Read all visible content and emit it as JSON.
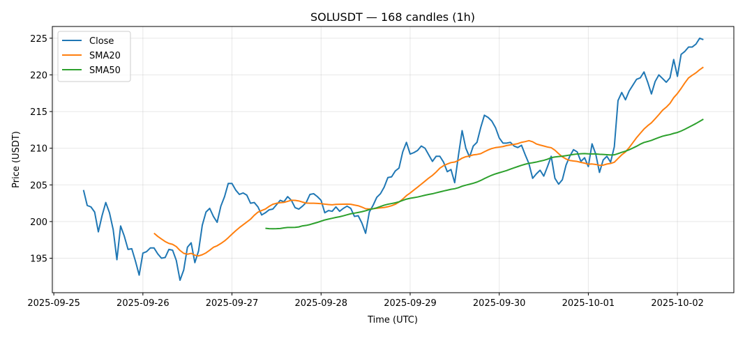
{
  "chart_data": {
    "type": "line",
    "title": "SOLUSDT — 168 candles (1h)",
    "xlabel": "Time (UTC)",
    "ylabel": "Price (USDT)",
    "x_start": "2025-09-25T08:00Z",
    "x_step_hours": 1,
    "xlim_hours_from_2025_09_25": [
      -0.4,
      183.2
    ],
    "ylim": [
      190.3,
      226.6
    ],
    "grid": true,
    "legend_position": "top-left",
    "x_ticks": [
      {
        "label": "2025-09-25",
        "hour": 0
      },
      {
        "label": "2025-09-26",
        "hour": 24
      },
      {
        "label": "2025-09-27",
        "hour": 48
      },
      {
        "label": "2025-09-28",
        "hour": 72
      },
      {
        "label": "2025-09-29",
        "hour": 96
      },
      {
        "label": "2025-09-30",
        "hour": 120
      },
      {
        "label": "2025-10-01",
        "hour": 144
      },
      {
        "label": "2025-10-02",
        "hour": 168
      }
    ],
    "y_ticks": [
      195,
      200,
      205,
      210,
      215,
      220,
      225
    ],
    "series": [
      {
        "name": "Close",
        "color": "#1f77b4",
        "values": [
          204.3,
          202.2,
          202.0,
          201.3,
          198.6,
          200.8,
          202.6,
          201.2,
          198.9,
          194.8,
          199.4,
          198.0,
          196.2,
          196.3,
          194.6,
          192.7,
          195.7,
          195.9,
          196.4,
          196.4,
          195.6,
          195.0,
          195.1,
          196.2,
          196.1,
          194.7,
          192.0,
          193.4,
          196.5,
          197.1,
          194.4,
          196.0,
          199.5,
          201.3,
          201.8,
          200.7,
          199.9,
          202.1,
          203.4,
          205.2,
          205.2,
          204.3,
          203.7,
          203.9,
          203.6,
          202.5,
          202.6,
          202.0,
          200.9,
          201.2,
          201.6,
          201.7,
          202.3,
          202.9,
          202.7,
          203.4,
          202.9,
          201.9,
          201.7,
          202.1,
          202.6,
          203.7,
          203.8,
          203.4,
          202.9,
          201.2,
          201.5,
          201.4,
          202.0,
          201.4,
          201.8,
          202.1,
          201.8,
          200.7,
          200.8,
          199.8,
          198.4,
          201.3,
          202.2,
          203.3,
          203.8,
          204.7,
          206.0,
          206.1,
          206.9,
          207.3,
          209.5,
          210.8,
          209.2,
          209.4,
          209.7,
          210.3,
          210.0,
          209.1,
          208.2,
          208.9,
          208.9,
          208.1,
          206.8,
          207.1,
          205.3,
          209.0,
          212.4,
          210.0,
          208.8,
          210.3,
          210.8,
          212.8,
          214.5,
          214.2,
          213.7,
          212.8,
          211.4,
          210.7,
          210.7,
          210.8,
          210.3,
          210.1,
          210.4,
          209.1,
          207.9,
          205.9,
          206.5,
          207.0,
          206.2,
          207.5,
          208.9,
          205.9,
          205.1,
          205.7,
          207.7,
          208.9,
          209.8,
          209.5,
          208.2,
          208.7,
          207.5,
          210.6,
          209.2,
          206.7,
          208.4,
          208.9,
          208.1,
          210.2,
          216.5,
          217.6,
          216.6,
          217.8,
          218.6,
          219.4,
          219.6,
          220.4,
          219.0,
          217.4,
          219.1,
          220.0,
          219.5,
          219.0,
          219.6,
          222.1,
          219.8,
          222.8,
          223.2,
          223.8,
          223.8,
          224.2,
          225.0,
          224.8
        ]
      },
      {
        "name": "SMA20",
        "color": "#ff7f0e",
        "sma_of": "Close",
        "window": 20
      },
      {
        "name": "SMA50",
        "color": "#2ca02c",
        "sma_of": "Close",
        "window": 50
      }
    ]
  }
}
